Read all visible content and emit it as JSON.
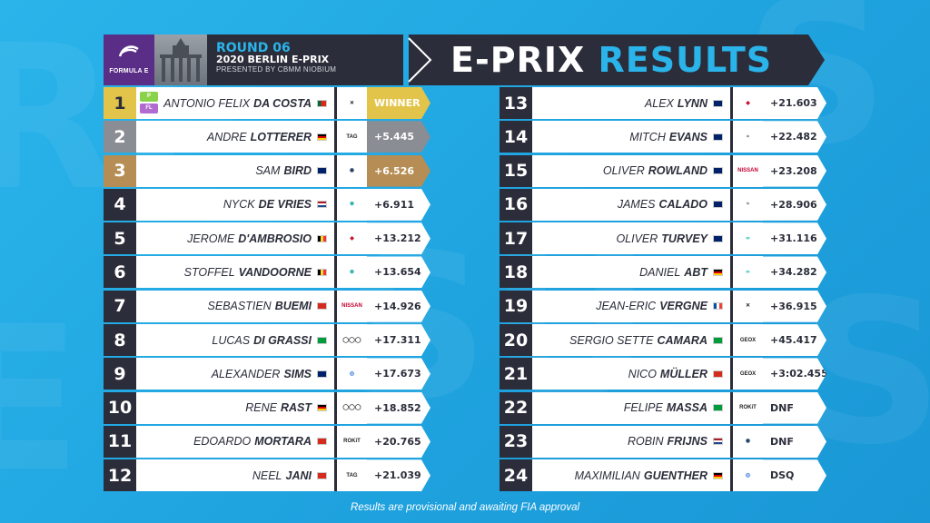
{
  "colors": {
    "accent": "#2ab4ea",
    "dark": "#2b2d3a",
    "gold": "#e3c44a",
    "silver": "#8a8d94",
    "bronze": "#b68d54",
    "background": "#1fa3df"
  },
  "header": {
    "logo_text": "FORMULA E",
    "round": "ROUND 06",
    "race": "2020 BERLIN E-PRIX",
    "presented": "PRESENTED BY CBMM NIOBIUM",
    "title_part1": "E-PRIX",
    "title_part2": "RESULTS"
  },
  "left_rows": [
    {
      "pos": "1",
      "first": "ANTONIO FELIX",
      "last": "DA COSTA",
      "flag": "portugal",
      "team": "techeetah-icon",
      "gap": "WINNER",
      "tags": [
        "P",
        "FL"
      ]
    },
    {
      "pos": "2",
      "first": "ANDRE",
      "last": "LOTTERER",
      "flag": "germany",
      "team": "porsche-icon",
      "gap": "+5.445"
    },
    {
      "pos": "3",
      "first": "SAM",
      "last": "BIRD",
      "flag": "uk",
      "team": "envision-icon",
      "gap": "+6.526"
    },
    {
      "pos": "4",
      "first": "NYCK",
      "last": "DE VRIES",
      "flag": "netherlands",
      "team": "mercedes-icon",
      "gap": "+6.911"
    },
    {
      "pos": "5",
      "first": "JEROME",
      "last": "D'AMBROSIO",
      "flag": "belgium",
      "team": "mahindra-icon",
      "gap": "+13.212"
    },
    {
      "pos": "6",
      "first": "STOFFEL",
      "last": "VANDOORNE",
      "flag": "belgium",
      "team": "mercedes-icon",
      "gap": "+13.654"
    },
    {
      "pos": "7",
      "first": "SEBASTIEN",
      "last": "BUEMI",
      "flag": "switzerland",
      "team": "nissan-icon",
      "gap": "+14.926"
    },
    {
      "pos": "8",
      "first": "LUCAS",
      "last": "DI GRASSI",
      "flag": "brazil",
      "team": "audi-icon",
      "gap": "+17.311"
    },
    {
      "pos": "9",
      "first": "ALEXANDER",
      "last": "SIMS",
      "flag": "uk",
      "team": "bmw-icon",
      "gap": "+17.673"
    },
    {
      "pos": "10",
      "first": "RENE",
      "last": "RAST",
      "flag": "germany",
      "team": "audi-icon",
      "gap": "+18.852"
    },
    {
      "pos": "11",
      "first": "EDOARDO",
      "last": "MORTARA",
      "flag": "switzerland",
      "team": "venturi-icon",
      "gap": "+20.765"
    },
    {
      "pos": "12",
      "first": "NEEL",
      "last": "JANI",
      "flag": "switzerland",
      "team": "porsche-icon",
      "gap": "+21.039"
    }
  ],
  "right_rows": [
    {
      "pos": "13",
      "first": "ALEX",
      "last": "LYNN",
      "flag": "uk",
      "team": "mahindra-icon",
      "gap": "+21.603"
    },
    {
      "pos": "14",
      "first": "MITCH",
      "last": "EVANS",
      "flag": "newzealand",
      "team": "jaguar-icon",
      "gap": "+22.482"
    },
    {
      "pos": "15",
      "first": "OLIVER",
      "last": "ROWLAND",
      "flag": "uk",
      "team": "nissan-icon",
      "gap": "+23.208"
    },
    {
      "pos": "16",
      "first": "JAMES",
      "last": "CALADO",
      "flag": "uk",
      "team": "jaguar-icon",
      "gap": "+28.906"
    },
    {
      "pos": "17",
      "first": "OLIVER",
      "last": "TURVEY",
      "flag": "uk",
      "team": "nio-icon",
      "gap": "+31.116"
    },
    {
      "pos": "18",
      "first": "DANIEL",
      "last": "ABT",
      "flag": "germany",
      "team": "nio-icon",
      "gap": "+34.282"
    },
    {
      "pos": "19",
      "first": "JEAN-ERIC",
      "last": "VERGNE",
      "flag": "france",
      "team": "techeetah-icon",
      "gap": "+36.915"
    },
    {
      "pos": "20",
      "first": "SERGIO SETTE",
      "last": "CAMARA",
      "flag": "brazil",
      "team": "geox-dragon-icon",
      "gap": "+45.417"
    },
    {
      "pos": "21",
      "first": "NICO",
      "last": "MÜLLER",
      "flag": "switzerland",
      "team": "geox-dragon-icon",
      "gap": "+3:02.455"
    },
    {
      "pos": "22",
      "first": "FELIPE",
      "last": "MASSA",
      "flag": "brazil",
      "team": "venturi-icon",
      "gap": "DNF"
    },
    {
      "pos": "23",
      "first": "ROBIN",
      "last": "FRIJNS",
      "flag": "netherlands",
      "team": "envision-icon",
      "gap": "DNF"
    },
    {
      "pos": "24",
      "first": "MAXIMILIAN",
      "last": "GUENTHER",
      "flag": "germany",
      "team": "bmw-icon",
      "gap": "DSQ"
    }
  ],
  "footer": "Results are provisional and awaiting FIA approval"
}
